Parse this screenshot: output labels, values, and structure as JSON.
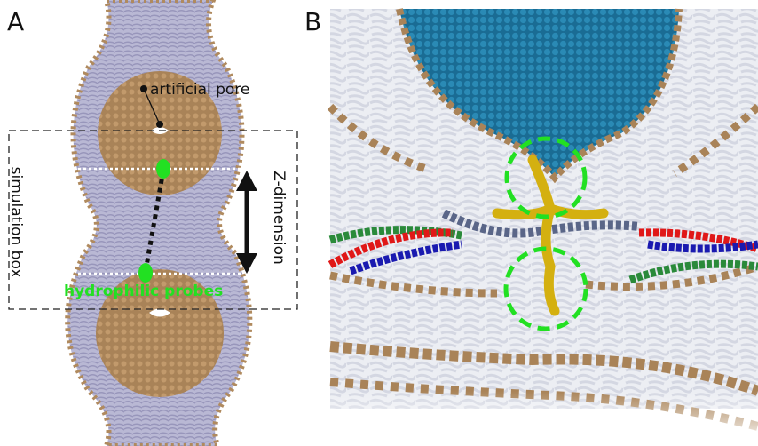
{
  "panels": [
    {
      "label": "A",
      "annotations": {
        "pore": "artificial pore",
        "box": "simulation box",
        "axis": "Z-dimension",
        "probes": "hydrophilic probes"
      }
    },
    {
      "label": "B"
    }
  ]
}
